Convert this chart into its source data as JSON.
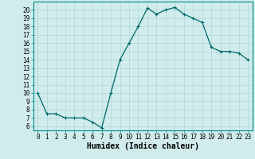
{
  "x": [
    0,
    1,
    2,
    3,
    4,
    5,
    6,
    7,
    8,
    9,
    10,
    11,
    12,
    13,
    14,
    15,
    16,
    17,
    18,
    19,
    20,
    21,
    22,
    23
  ],
  "y": [
    10,
    7.5,
    7.5,
    7.0,
    7.0,
    7.0,
    6.5,
    5.8,
    10.0,
    14.0,
    16.0,
    18.0,
    20.2,
    19.5,
    20.0,
    20.3,
    19.5,
    19.0,
    18.5,
    15.5,
    15.0,
    15.0,
    14.8,
    14.0
  ],
  "line_color": "#006868",
  "marker": "+",
  "marker_size": 3.5,
  "linewidth": 0.9,
  "xlabel": "Humidex (Indice chaleur)",
  "xlabel_fontsize": 7,
  "xlabel_fontweight": "bold",
  "bg_color": "#d0ecec",
  "grid_color": "#b0d8d8",
  "yticks": [
    6,
    7,
    8,
    9,
    10,
    11,
    12,
    13,
    14,
    15,
    16,
    17,
    18,
    19,
    20
  ],
  "ylim": [
    5.5,
    21.0
  ],
  "xlim": [
    -0.5,
    23.5
  ],
  "tick_fontsize": 5.5,
  "spine_color": "#008888"
}
